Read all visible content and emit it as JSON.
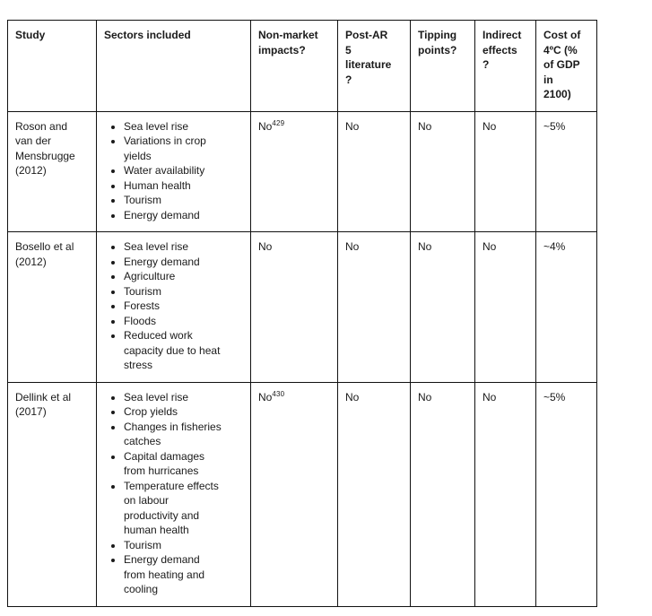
{
  "colors": {
    "background": "#ffffff",
    "border": "#111111",
    "text": "#1a1a1a"
  },
  "table": {
    "headers": [
      "Study",
      "Sectors included",
      "Non-market impacts?",
      "Post-AR 5 literature ?",
      "Tipping points?",
      "Indirect effects ?",
      "Cost of 4ºC (% of GDP in 2100)"
    ],
    "rows": [
      {
        "study": "Roson and van der Mensbrugge (2012)",
        "sectors": [
          "Sea level rise",
          "Variations in crop yields",
          "Water availability",
          "Human health",
          "Tourism",
          "Energy demand"
        ],
        "non_market_impacts": "No",
        "non_market_footnote": "429",
        "post_ar5_literature": "No",
        "tipping_points": "No",
        "indirect_effects": "No",
        "cost_of_4c": "~5%"
      },
      {
        "study": "Bosello et al (2012)",
        "sectors": [
          "Sea level rise",
          "Energy demand",
          "Agriculture",
          "Tourism",
          "Forests",
          "Floods",
          "Reduced work capacity due to heat stress"
        ],
        "non_market_impacts": "No",
        "non_market_footnote": "",
        "post_ar5_literature": "No",
        "tipping_points": "No",
        "indirect_effects": "No",
        "cost_of_4c": "~4%"
      },
      {
        "study": "Dellink et al (2017)",
        "sectors": [
          "Sea level rise",
          "Crop yields",
          "Changes in fisheries catches",
          "Capital damages from hurricanes",
          "Temperature effects on labour productivity and human health",
          "Tourism",
          "Energy demand from heating and cooling"
        ],
        "non_market_impacts": "No",
        "non_market_footnote": "430",
        "post_ar5_literature": "No",
        "tipping_points": "No",
        "indirect_effects": "No",
        "cost_of_4c": "~5%"
      }
    ]
  }
}
